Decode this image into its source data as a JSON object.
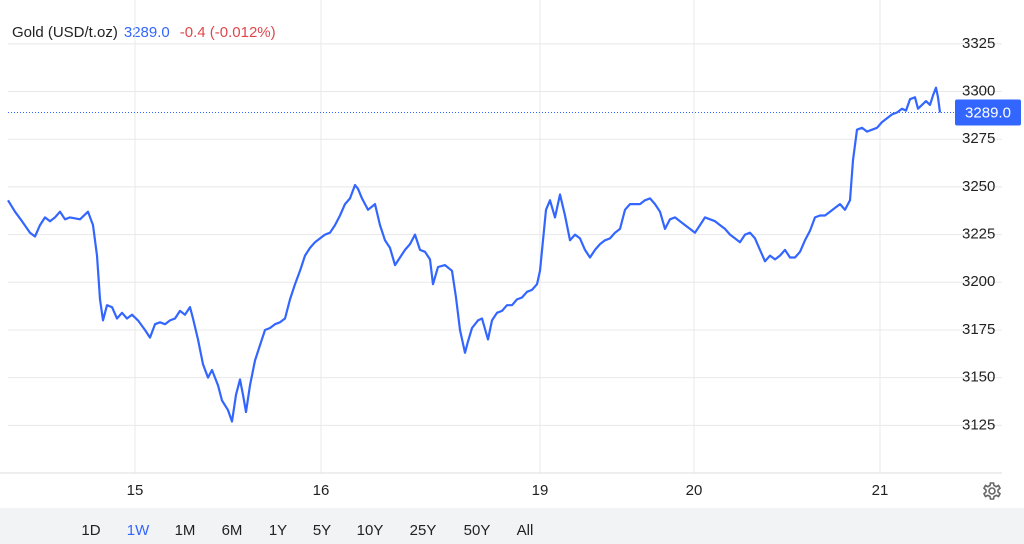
{
  "chart_data": {
    "type": "line",
    "title": "Gold (USD/t.oz)",
    "last": {
      "value": 3289,
      "label": "3289.0"
    },
    "change": "-0.4 (-0.012%)",
    "xlim": [
      0,
      942
    ],
    "xticks": [
      {
        "value": 127,
        "label": "15"
      },
      {
        "value": 313,
        "label": "16"
      },
      {
        "value": 532,
        "label": "19"
      },
      {
        "value": 686,
        "label": "20"
      },
      {
        "value": 872,
        "label": "21"
      }
    ],
    "ylim": [
      3100,
      3348
    ],
    "yticks": [
      3125,
      3150,
      3175,
      3200,
      3225,
      3250,
      3275,
      3300,
      3325
    ],
    "grid": true,
    "x": [
      0,
      7,
      14,
      22,
      27,
      32,
      37,
      42,
      47,
      52,
      57,
      62,
      72,
      80,
      85,
      89,
      92,
      95,
      99,
      104,
      109,
      114,
      119,
      124,
      130,
      137,
      142,
      147,
      152,
      157,
      162,
      167,
      172,
      177,
      182,
      185,
      190,
      195,
      200,
      204,
      210,
      214,
      220,
      224,
      228,
      232,
      235,
      238,
      242,
      247,
      252,
      257,
      262,
      267,
      272,
      277,
      282,
      287,
      292,
      297,
      302,
      307,
      312,
      317,
      322,
      327,
      332,
      337,
      342,
      347,
      350,
      354,
      360,
      367,
      372,
      377,
      382,
      387,
      392,
      397,
      402,
      407,
      412,
      417,
      422,
      425,
      430,
      437,
      444,
      448,
      452,
      457,
      460,
      464,
      470,
      474,
      480,
      484,
      489,
      494,
      499,
      504,
      509,
      514,
      519,
      524,
      529,
      532,
      535,
      538,
      542,
      547,
      552,
      557,
      562,
      567,
      572,
      577,
      582,
      587,
      592,
      597,
      602,
      607,
      612,
      617,
      622,
      632,
      637,
      642,
      647,
      652,
      657,
      662,
      667,
      672,
      677,
      682,
      687,
      692,
      697,
      702,
      707,
      712,
      717,
      722,
      727,
      732,
      737,
      742,
      747,
      752,
      757,
      762,
      767,
      772,
      777,
      782,
      787,
      792,
      797,
      802,
      807,
      812,
      817,
      822,
      827,
      832,
      837,
      842,
      845,
      849,
      854,
      859,
      864,
      869,
      874,
      879,
      884,
      889,
      894,
      898,
      902,
      907,
      910,
      914,
      918,
      922,
      925,
      928,
      930,
      932
    ],
    "series": [
      {
        "color": "#3366ff",
        "values": [
          3243,
          3237,
          3232,
          3226,
          3224,
          3230,
          3234,
          3232,
          3234,
          3237,
          3233,
          3234,
          3233,
          3237,
          3230,
          3214,
          3191,
          3180,
          3188,
          3187,
          3181,
          3184,
          3181,
          3183,
          3180,
          3175,
          3171,
          3178,
          3179,
          3178,
          3180,
          3181,
          3185,
          3183,
          3187,
          3181,
          3170,
          3157,
          3150,
          3154,
          3146,
          3138,
          3133,
          3127,
          3141,
          3149,
          3141,
          3132,
          3146,
          3159,
          3167,
          3175,
          3176,
          3178,
          3179,
          3181,
          3191,
          3199,
          3206,
          3214,
          3218,
          3221,
          3223,
          3225,
          3226,
          3230,
          3235,
          3241,
          3244,
          3251,
          3249,
          3244,
          3238,
          3241,
          3230,
          3222,
          3218,
          3209,
          3213,
          3217,
          3220,
          3225,
          3217,
          3216,
          3212,
          3199,
          3208,
          3209,
          3206,
          3192,
          3175,
          3163,
          3169,
          3176,
          3180,
          3181,
          3170,
          3180,
          3184,
          3185,
          3188,
          3188,
          3191,
          3192,
          3195,
          3196,
          3199,
          3206,
          3222,
          3238,
          3243,
          3234,
          3246,
          3235,
          3222,
          3225,
          3223,
          3217,
          3213,
          3217,
          3220,
          3222,
          3223,
          3226,
          3228,
          3238,
          3241,
          3241,
          3243,
          3244,
          3241,
          3237,
          3228,
          3233,
          3234,
          3232,
          3230,
          3228,
          3226,
          3230,
          3234,
          3233,
          3232,
          3230,
          3228,
          3225,
          3223,
          3221,
          3225,
          3226,
          3223,
          3217,
          3211,
          3214,
          3212,
          3214,
          3217,
          3213,
          3213,
          3216,
          3222,
          3227,
          3234,
          3235,
          3235,
          3237,
          3239,
          3241,
          3238,
          3243,
          3264,
          3280,
          3281,
          3279,
          3280,
          3281,
          3284,
          3286,
          3288,
          3289,
          3291,
          3290,
          3296,
          3297,
          3291,
          3293,
          3295,
          3293,
          3298,
          3302,
          3297,
          3289
        ]
      }
    ],
    "ranges": [
      "1D",
      "1W",
      "1M",
      "6M",
      "1Y",
      "5Y",
      "10Y",
      "25Y",
      "50Y",
      "All"
    ],
    "active_range": 1
  }
}
